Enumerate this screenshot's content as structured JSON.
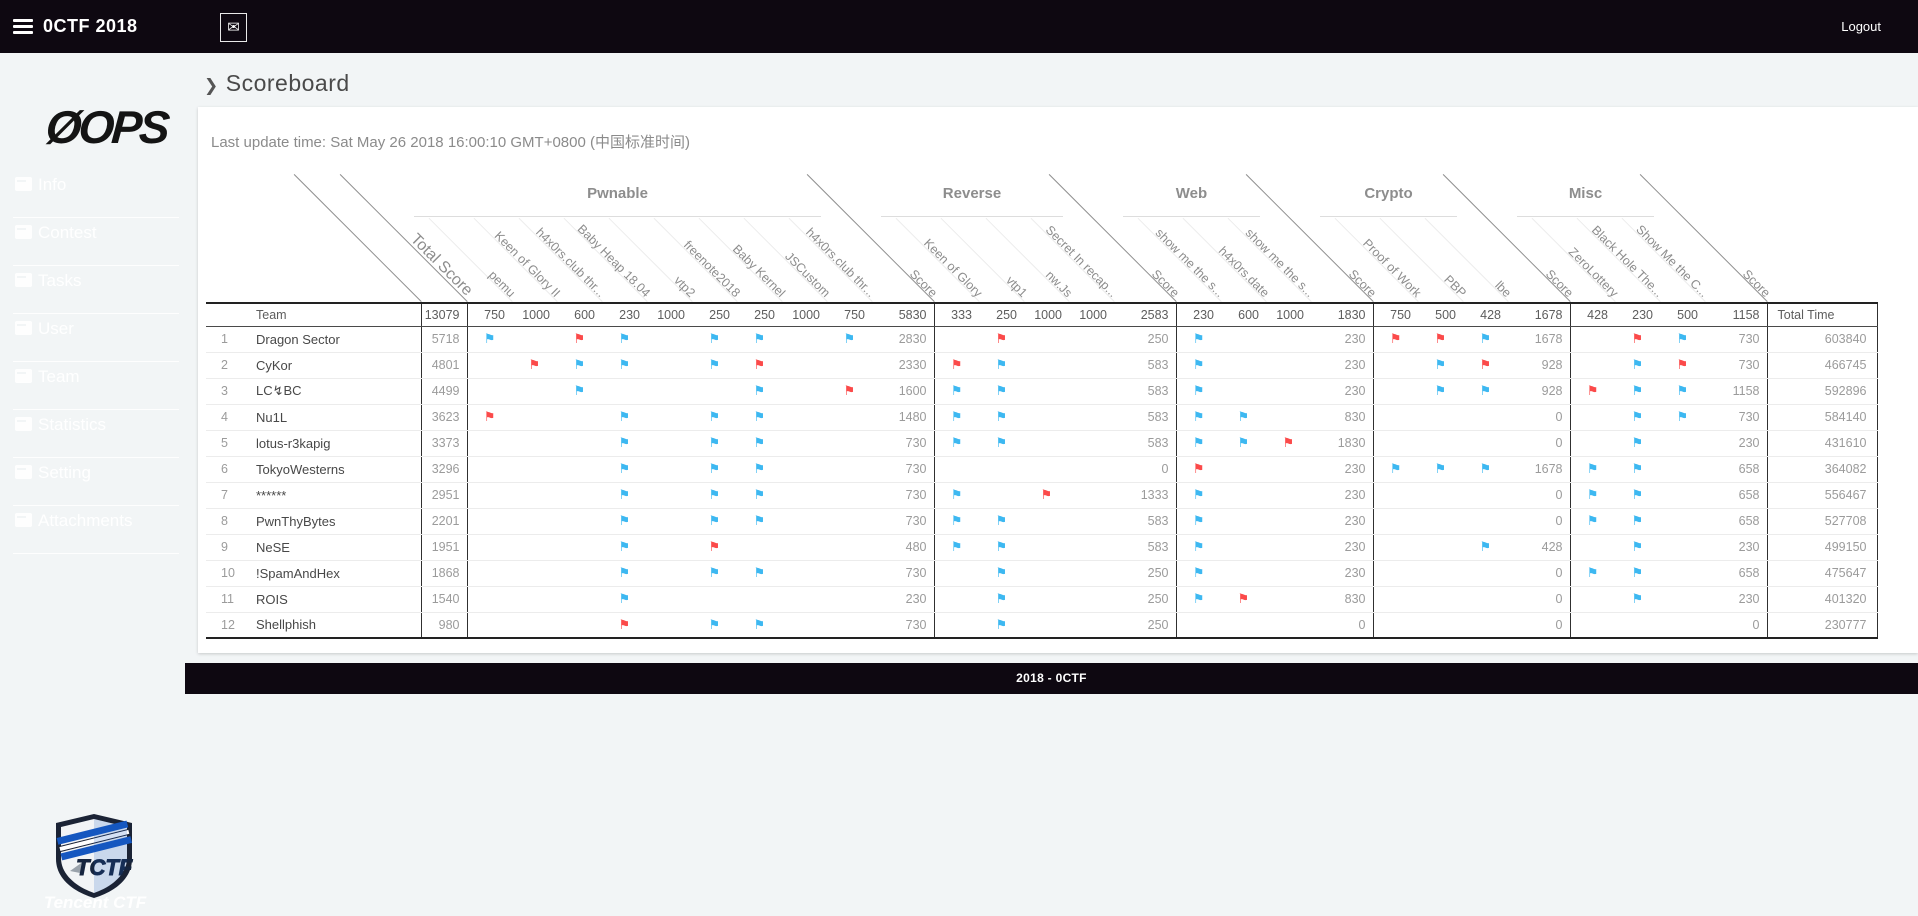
{
  "topbar": {
    "title": "0CTF 2018",
    "logout": "Logout"
  },
  "sidebar": {
    "logo": "ØOPS",
    "items": [
      "Info",
      "Contest",
      "Tasks",
      "User",
      "Team",
      "Statistics",
      "Setting",
      "Attachments"
    ],
    "badge_caption": "Tencent CTF"
  },
  "page": {
    "breadcrumb_arrow": "❯",
    "title": "Scoreboard",
    "last_update": "Last update time: Sat May 26 2018 16:00:10 GMT+0800 (中国标准时间)",
    "footer": "2018 - 0CTF"
  },
  "colors": {
    "blue_flag": "#3db8f1",
    "red_flag": "#fb4a4a"
  },
  "scoreboard": {
    "team_label": "Team",
    "total_score_label": "Total Score",
    "total_score_max": "13079",
    "score_label": "Score",
    "total_time_label": "Total Time",
    "groups": [
      {
        "name": "Pwnable",
        "score_max": "5830",
        "challenges": [
          [
            "pemu",
            "750"
          ],
          [
            "Keen of Glory II",
            "1000"
          ],
          [
            "h4x0rs.club thr...",
            "600"
          ],
          [
            "Baby Heap 18.04",
            "230"
          ],
          [
            "vtp2",
            "1000"
          ],
          [
            "freenote2018",
            "250"
          ],
          [
            "Baby Kernel",
            "250"
          ],
          [
            "JSCustom",
            "1000"
          ],
          [
            "h4x0rs.club thr...",
            "750"
          ]
        ]
      },
      {
        "name": "Reverse",
        "score_max": "2583",
        "challenges": [
          [
            "Keen of Glory",
            "333"
          ],
          [
            "vtp1",
            "250"
          ],
          [
            "nw.Js",
            "1000"
          ],
          [
            "Secret In recap...",
            "1000"
          ]
        ]
      },
      {
        "name": "Web",
        "score_max": "1830",
        "challenges": [
          [
            "show me the s...",
            "230"
          ],
          [
            "h4x0rs.date",
            "600"
          ],
          [
            "show me the s...",
            "1000"
          ]
        ]
      },
      {
        "name": "Crypto",
        "score_max": "1678",
        "challenges": [
          [
            "Proof of Work",
            "750"
          ],
          [
            "PBP",
            "500"
          ],
          [
            "lbe",
            "428"
          ]
        ]
      },
      {
        "name": "Misc",
        "score_max": "1158",
        "challenges": [
          [
            "ZeroLottery",
            "428"
          ],
          [
            "Black Hole The...",
            "230"
          ],
          [
            "Show Me the C...",
            "500"
          ]
        ]
      }
    ],
    "rows": [
      {
        "rank": "1",
        "team": "Dragon Sector",
        "total": "5718",
        "flags": [
          "b",
          "",
          "r",
          "b",
          "",
          "b",
          "b",
          "",
          "b",
          "",
          "r",
          "",
          "",
          "b",
          "",
          "",
          "r",
          "r",
          "b",
          "",
          "r",
          "b"
        ],
        "scores": [
          "2830",
          "250",
          "230",
          "1678",
          "730"
        ],
        "time": "603840"
      },
      {
        "rank": "2",
        "team": "CyKor",
        "total": "4801",
        "flags": [
          "",
          "r",
          "b",
          "b",
          "",
          "b",
          "r",
          "",
          "",
          "r",
          "b",
          "",
          "",
          "b",
          "",
          "",
          "",
          "b",
          "r",
          "",
          "b",
          "r"
        ],
        "scores": [
          "2330",
          "583",
          "230",
          "928",
          "730"
        ],
        "time": "466745"
      },
      {
        "rank": "3",
        "team": "LC↯BC",
        "total": "4499",
        "flags": [
          "",
          "",
          "b",
          "",
          "",
          "",
          "b",
          "",
          "r",
          "b",
          "b",
          "",
          "",
          "b",
          "",
          "",
          "",
          "b",
          "b",
          "r",
          "b",
          "b"
        ],
        "scores": [
          "1600",
          "583",
          "230",
          "928",
          "1158"
        ],
        "time": "592896"
      },
      {
        "rank": "4",
        "team": "Nu1L",
        "total": "3623",
        "flags": [
          "r",
          "",
          "",
          "b",
          "",
          "b",
          "b",
          "",
          "",
          "b",
          "b",
          "",
          "",
          "b",
          "b",
          "",
          "",
          "",
          "",
          "",
          "b",
          "b"
        ],
        "scores": [
          "1480",
          "583",
          "830",
          "0",
          "730"
        ],
        "time": "584140"
      },
      {
        "rank": "5",
        "team": "lotus-r3kapig",
        "total": "3373",
        "flags": [
          "",
          "",
          "",
          "b",
          "",
          "b",
          "b",
          "",
          "",
          "b",
          "b",
          "",
          "",
          "b",
          "b",
          "r",
          "",
          "",
          "",
          "",
          "b",
          ""
        ],
        "scores": [
          "730",
          "583",
          "1830",
          "0",
          "230"
        ],
        "time": "431610"
      },
      {
        "rank": "6",
        "team": "TokyoWesterns",
        "total": "3296",
        "flags": [
          "",
          "",
          "",
          "b",
          "",
          "b",
          "b",
          "",
          "",
          "",
          "",
          "",
          "",
          "r",
          "",
          "",
          "b",
          "b",
          "b",
          "b",
          "b",
          ""
        ],
        "scores": [
          "730",
          "0",
          "230",
          "1678",
          "658"
        ],
        "time": "364082"
      },
      {
        "rank": "7",
        "team": "******",
        "total": "2951",
        "flags": [
          "",
          "",
          "",
          "b",
          "",
          "b",
          "b",
          "",
          "",
          "b",
          "",
          "r",
          "",
          "b",
          "",
          "",
          "",
          "",
          "",
          "b",
          "b",
          ""
        ],
        "scores": [
          "730",
          "1333",
          "230",
          "0",
          "658"
        ],
        "time": "556467"
      },
      {
        "rank": "8",
        "team": "PwnThyBytes",
        "total": "2201",
        "flags": [
          "",
          "",
          "",
          "b",
          "",
          "b",
          "b",
          "",
          "",
          "b",
          "b",
          "",
          "",
          "b",
          "",
          "",
          "",
          "",
          "",
          "b",
          "b",
          ""
        ],
        "scores": [
          "730",
          "583",
          "230",
          "0",
          "658"
        ],
        "time": "527708"
      },
      {
        "rank": "9",
        "team": "NeSE",
        "total": "1951",
        "flags": [
          "",
          "",
          "",
          "b",
          "",
          "r",
          "",
          "",
          "",
          "b",
          "b",
          "",
          "",
          "b",
          "",
          "",
          "",
          "",
          "b",
          "",
          "b",
          ""
        ],
        "scores": [
          "480",
          "583",
          "230",
          "428",
          "230"
        ],
        "time": "499150"
      },
      {
        "rank": "10",
        "team": "!SpamAndHex",
        "total": "1868",
        "flags": [
          "",
          "",
          "",
          "b",
          "",
          "b",
          "b",
          "",
          "",
          "",
          "b",
          "",
          "",
          "b",
          "",
          "",
          "",
          "",
          "",
          "b",
          "b",
          ""
        ],
        "scores": [
          "730",
          "250",
          "230",
          "0",
          "658"
        ],
        "time": "475647"
      },
      {
        "rank": "11",
        "team": "ROIS",
        "total": "1540",
        "flags": [
          "",
          "",
          "",
          "b",
          "",
          "",
          "",
          "",
          "",
          "",
          "b",
          "",
          "",
          "b",
          "r",
          "",
          "",
          "",
          "",
          "",
          "b",
          ""
        ],
        "scores": [
          "230",
          "250",
          "830",
          "0",
          "230"
        ],
        "time": "401320"
      },
      {
        "rank": "12",
        "team": "Shellphish",
        "total": "980",
        "flags": [
          "",
          "",
          "",
          "r",
          "",
          "b",
          "b",
          "",
          "",
          "",
          "b",
          "",
          "",
          "",
          "",
          "",
          "",
          "",
          "",
          "",
          "",
          ""
        ],
        "scores": [
          "730",
          "250",
          "0",
          "0",
          "0"
        ],
        "time": "230777"
      }
    ]
  }
}
